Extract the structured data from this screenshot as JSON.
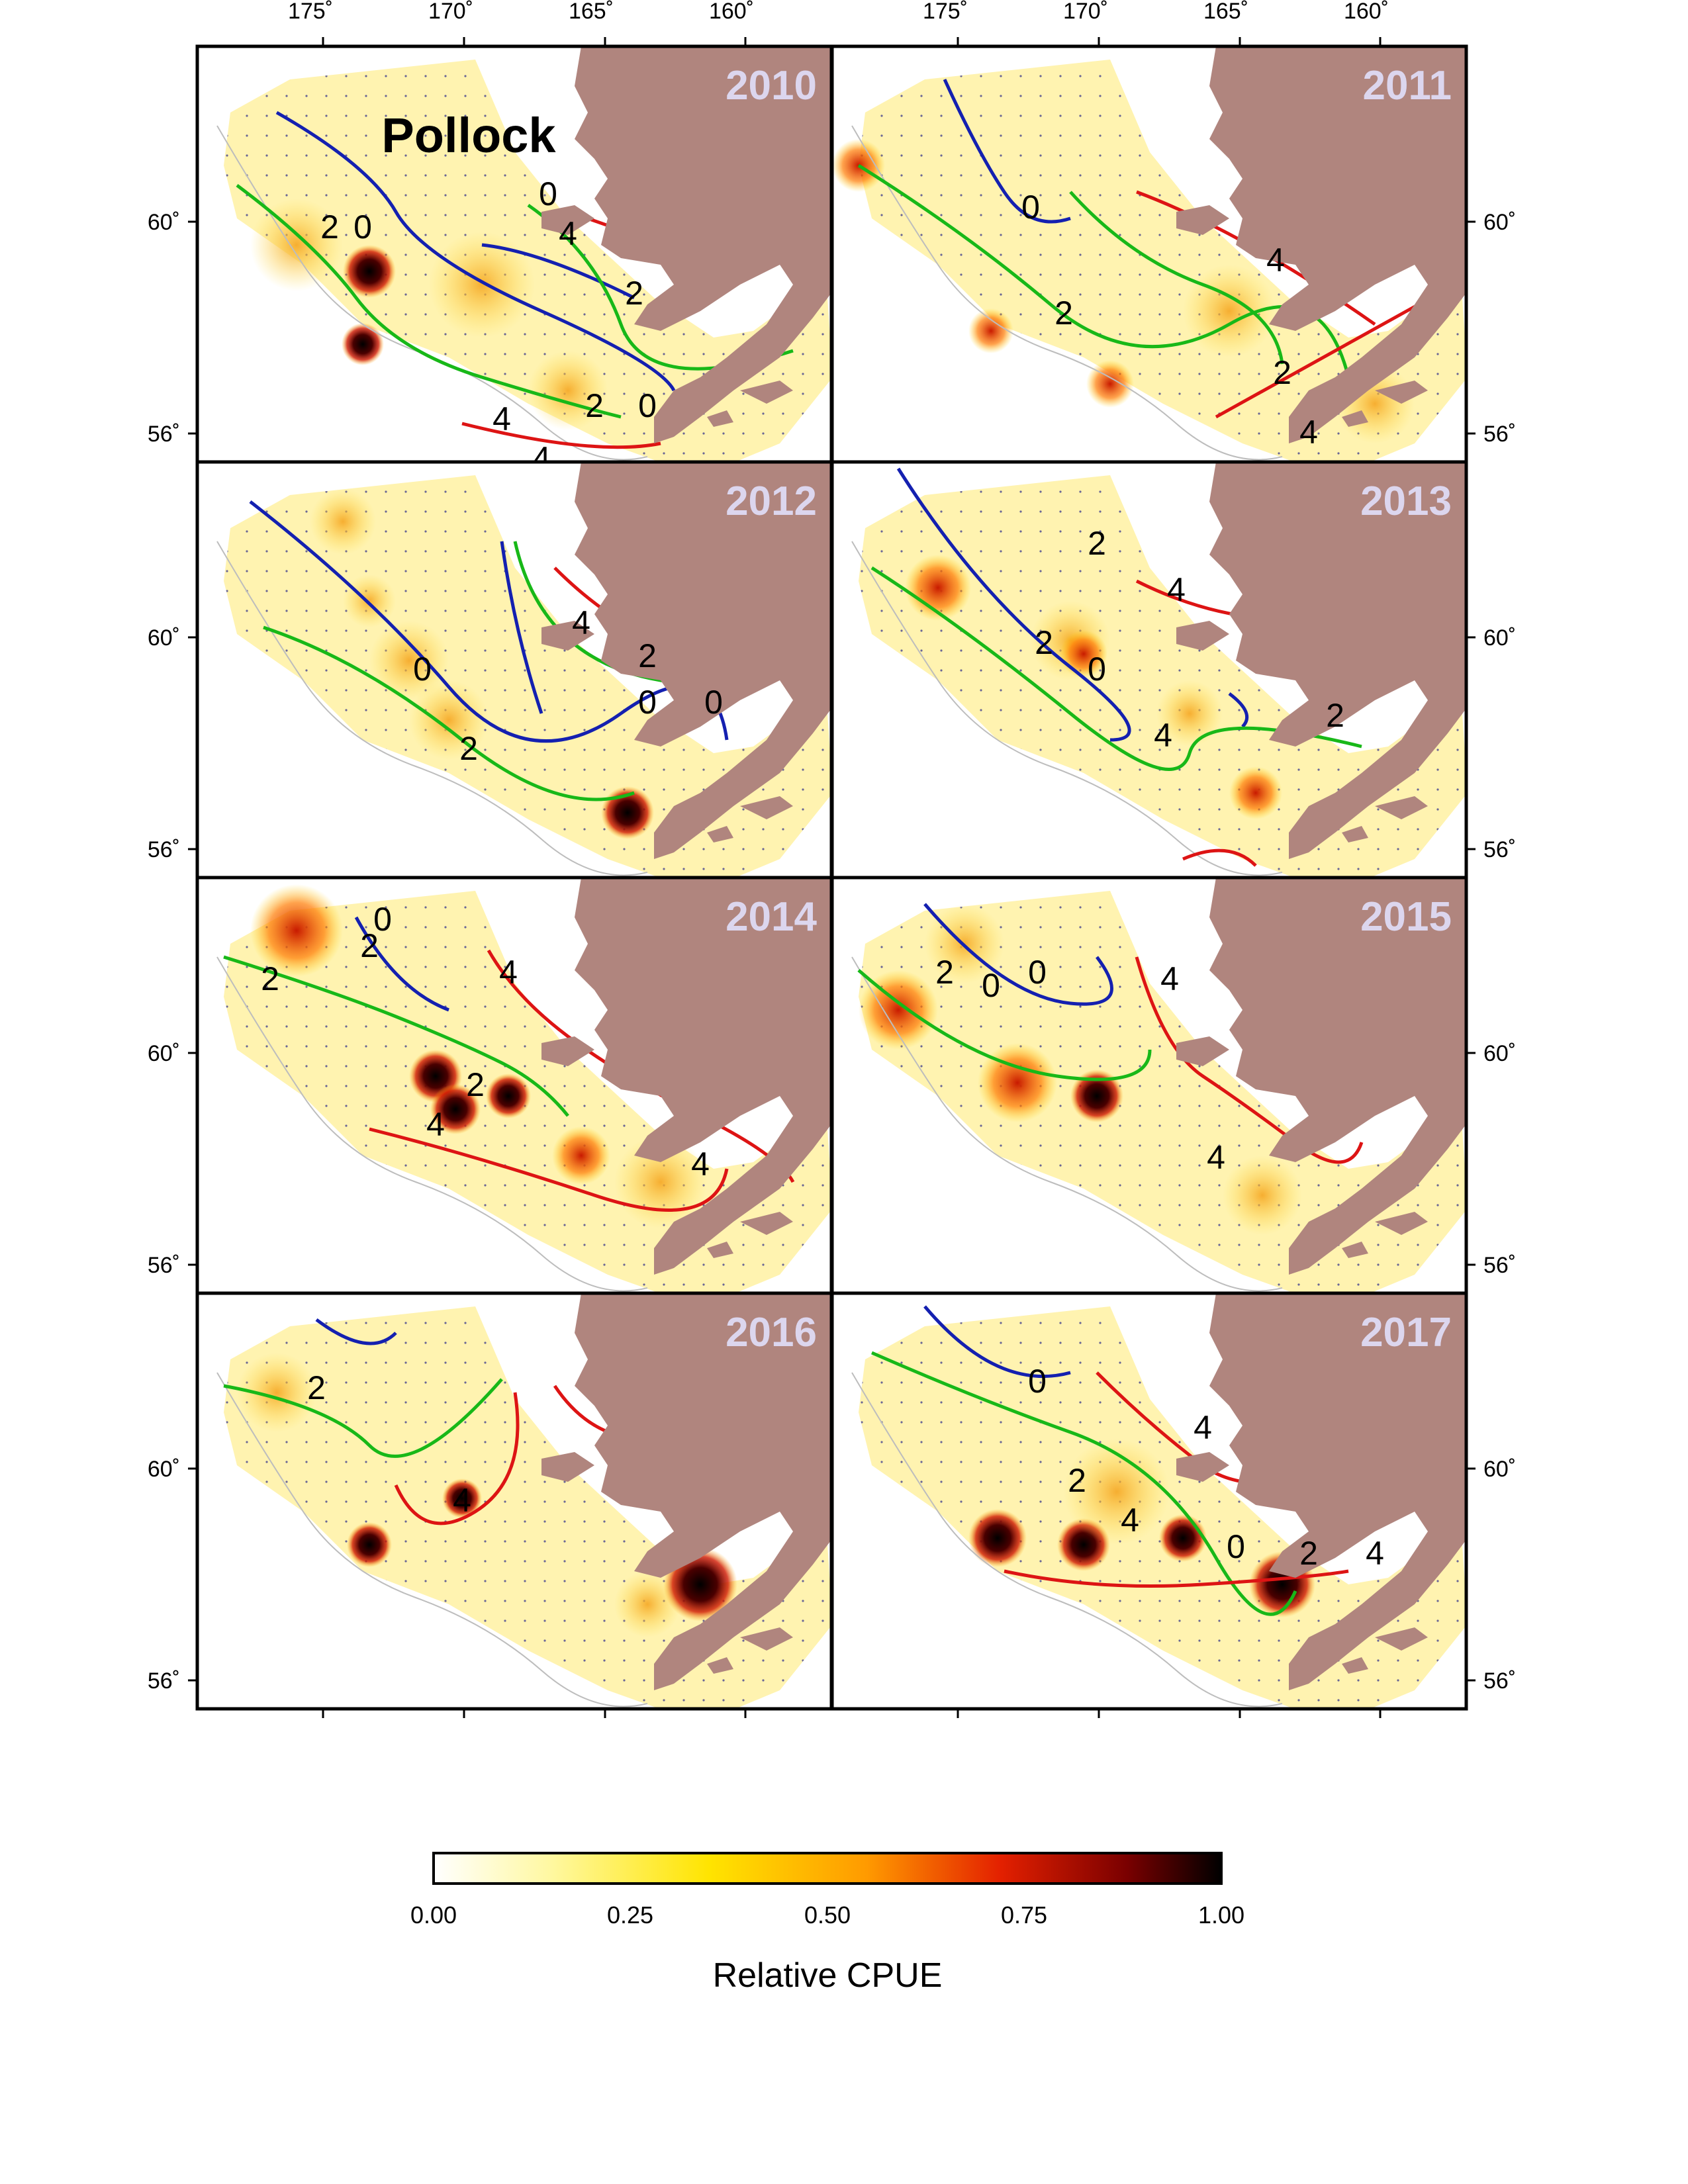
{
  "species": "Pollock",
  "longitude_ticks": [
    "175˚",
    "170˚",
    "165˚",
    "160˚"
  ],
  "latitude_ticks": [
    "60˚",
    "56˚"
  ],
  "panels": [
    {
      "year": "2010",
      "labels": [
        "0",
        "2",
        "0",
        "4",
        "2",
        "0",
        "2",
        "4",
        "4"
      ]
    },
    {
      "year": "2011",
      "labels": [
        "0",
        "2",
        "4",
        "2",
        "4"
      ]
    },
    {
      "year": "2012",
      "labels": [
        "4",
        "2",
        "0",
        "0",
        "0",
        "2"
      ]
    },
    {
      "year": "2013",
      "labels": [
        "2",
        "4",
        "2",
        "0",
        "4",
        "2"
      ]
    },
    {
      "year": "2014",
      "labels": [
        "0",
        "2",
        "2",
        "4",
        "2",
        "4",
        "4"
      ]
    },
    {
      "year": "2015",
      "labels": [
        "2",
        "0",
        "0",
        "4",
        "4"
      ]
    },
    {
      "year": "2016",
      "labels": [
        "2",
        "4"
      ]
    },
    {
      "year": "2017",
      "labels": [
        "0",
        "4",
        "2",
        "4",
        "0",
        "2",
        "4"
      ]
    }
  ],
  "colorbar": {
    "title": "Relative CPUE",
    "ticks": [
      "0.00",
      "0.25",
      "0.50",
      "0.75",
      "1.00"
    ],
    "colors": [
      "#ffffff",
      "#fff8a0",
      "#ffe400",
      "#ff9a00",
      "#e32000",
      "#7a0000",
      "#000000"
    ]
  },
  "colors": {
    "land": "#b0857e",
    "contour_0": "#1420b0",
    "contour_2": "#18b818",
    "contour_4": "#dd1414",
    "year_text": "#dcd6ee"
  }
}
